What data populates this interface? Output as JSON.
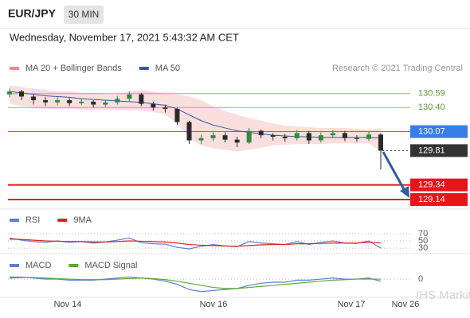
{
  "header": {
    "symbol": "EUR/JPY",
    "interval": "30 MIN",
    "timestamp": "Wednesday, November 17, 2021 5:43:32 AM CET"
  },
  "attribution": "Research © 2021 Trading Central",
  "watermark": "IHS Markit",
  "x_labels": [
    "Nov 14",
    "Nov 16",
    "Nov 17",
    "Nov 26"
  ],
  "chart_data": [
    {
      "type": "candlestick",
      "up_color": "#2e8b3e",
      "down_color": "#2a2a2a",
      "open": [
        130.58,
        130.62,
        130.55,
        130.5,
        130.47,
        130.5,
        130.46,
        130.48,
        130.44,
        130.47,
        130.52,
        130.58,
        130.45,
        130.4,
        130.38,
        130.2,
        129.95,
        129.98,
        130.02,
        129.96,
        129.92,
        130.08,
        130.02,
        130.0,
        129.98,
        130.05,
        129.95,
        130.02,
        130.05,
        129.98,
        129.97,
        130.03
      ],
      "high": [
        130.66,
        130.64,
        130.58,
        130.54,
        130.54,
        130.53,
        130.52,
        130.5,
        130.5,
        130.56,
        130.62,
        130.6,
        130.48,
        130.44,
        130.4,
        130.22,
        130.03,
        130.06,
        130.06,
        130.0,
        130.12,
        130.1,
        130.05,
        130.04,
        130.09,
        130.08,
        130.06,
        130.09,
        130.08,
        130.02,
        130.07,
        130.05
      ],
      "low": [
        130.54,
        130.5,
        130.44,
        130.42,
        130.43,
        130.42,
        130.43,
        130.4,
        130.41,
        130.44,
        130.49,
        130.42,
        130.36,
        130.33,
        130.16,
        129.9,
        129.9,
        129.94,
        129.92,
        129.86,
        129.9,
        129.98,
        129.95,
        129.93,
        129.95,
        129.9,
        129.92,
        129.98,
        129.94,
        129.93,
        129.94,
        129.55
      ],
      "close": [
        130.62,
        130.55,
        130.5,
        130.47,
        130.5,
        130.46,
        130.48,
        130.44,
        130.47,
        130.52,
        130.58,
        130.45,
        130.4,
        130.38,
        130.2,
        129.95,
        129.98,
        130.02,
        129.96,
        129.92,
        130.08,
        130.02,
        130.0,
        129.98,
        130.05,
        129.95,
        130.02,
        130.05,
        129.98,
        129.97,
        130.03,
        129.81
      ],
      "bands": {
        "name": "MA 20 + Bollinger Bands",
        "color": "#f08a8a",
        "upper": [
          130.7,
          130.68,
          130.66,
          130.64,
          130.62,
          130.62,
          130.6,
          130.6,
          130.58,
          130.58,
          130.62,
          130.64,
          130.62,
          130.6,
          130.58,
          130.55,
          130.5,
          130.42,
          130.35,
          130.3,
          130.26,
          130.22,
          130.18,
          130.15,
          130.14,
          130.13,
          130.12,
          130.12,
          130.12,
          130.11,
          130.1,
          130.12
        ],
        "lower": [
          130.45,
          130.42,
          130.4,
          130.38,
          130.38,
          130.38,
          130.37,
          130.37,
          130.37,
          130.37,
          130.36,
          130.36,
          130.34,
          130.3,
          130.18,
          129.98,
          129.88,
          129.84,
          129.82,
          129.8,
          129.82,
          129.85,
          129.88,
          129.89,
          129.9,
          129.9,
          129.9,
          129.91,
          129.91,
          129.91,
          129.91,
          129.8
        ]
      },
      "series": [
        {
          "name": "MA 50",
          "color": "#3558a0",
          "values": [
            130.62,
            130.6,
            130.58,
            130.56,
            130.55,
            130.54,
            130.52,
            130.51,
            130.5,
            130.49,
            130.48,
            130.47,
            130.45,
            130.43,
            130.38,
            130.3,
            130.22,
            130.16,
            130.12,
            130.08,
            130.06,
            130.04,
            130.02,
            130.01,
            130.0,
            130.0,
            129.99,
            129.99,
            129.99,
            129.99,
            129.99,
            129.98
          ]
        }
      ],
      "levels": [
        {
          "value": 130.59,
          "color": "#8cc26a",
          "label_box": false
        },
        {
          "value": 130.4,
          "label": "130.40",
          "color": "#8cc26a",
          "label_box": false
        },
        {
          "value": 130.07,
          "color": "#3b7de8",
          "label_box": true
        },
        {
          "value": 129.81,
          "color": "#333333",
          "label_box": true,
          "style": "dotted"
        },
        {
          "value": 129.34,
          "color": "#e8141a",
          "label_box": true
        },
        {
          "value": 129.14,
          "color": "#e8141a",
          "label_box": true
        }
      ],
      "ylim": [
        129.02,
        131.11
      ]
    },
    {
      "type": "line",
      "grid_style": "dotted",
      "series": [
        {
          "name": "RSI",
          "color": "#5b7fd4",
          "values": [
            58,
            52,
            48,
            46,
            50,
            46,
            48,
            44,
            47,
            52,
            58,
            45,
            42,
            41,
            32,
            28,
            35,
            40,
            36,
            34,
            48,
            44,
            42,
            40,
            48,
            40,
            46,
            50,
            44,
            43,
            50,
            30
          ]
        },
        {
          "name": "9MA",
          "color": "#e02020",
          "values": [
            55,
            54,
            52,
            50,
            49,
            48,
            48,
            47,
            47,
            48,
            50,
            49,
            48,
            47,
            44,
            40,
            38,
            37,
            36,
            35,
            37,
            39,
            40,
            40,
            42,
            42,
            43,
            44,
            44,
            44,
            46,
            44
          ]
        }
      ],
      "ylim": [
        17,
        83
      ],
      "yticks": [
        30,
        50,
        70
      ]
    },
    {
      "type": "line",
      "series": [
        {
          "name": "MACD",
          "color": "#5b7fd4",
          "values": [
            0.02,
            0.02,
            0.01,
            0.0,
            0.0,
            -0.01,
            -0.01,
            -0.01,
            0.0,
            0.01,
            0.02,
            0.01,
            0.0,
            -0.02,
            -0.05,
            -0.1,
            -0.12,
            -0.11,
            -0.1,
            -0.09,
            -0.06,
            -0.04,
            -0.03,
            -0.03,
            -0.01,
            -0.01,
            0.0,
            0.01,
            0.0,
            0.0,
            0.01,
            -0.02
          ]
        },
        {
          "name": "MACD Signal",
          "color": "#5aaa30",
          "values": [
            0.01,
            0.015,
            0.015,
            0.01,
            0.005,
            0.0,
            -0.005,
            -0.005,
            -0.005,
            0.0,
            0.005,
            0.01,
            0.005,
            -0.005,
            -0.02,
            -0.04,
            -0.06,
            -0.08,
            -0.09,
            -0.09,
            -0.08,
            -0.07,
            -0.06,
            -0.05,
            -0.04,
            -0.03,
            -0.02,
            -0.01,
            -0.005,
            0.0,
            0.0,
            0.0
          ]
        }
      ],
      "ylim": [
        -0.16,
        0.1
      ],
      "yticks": [
        0
      ]
    }
  ]
}
